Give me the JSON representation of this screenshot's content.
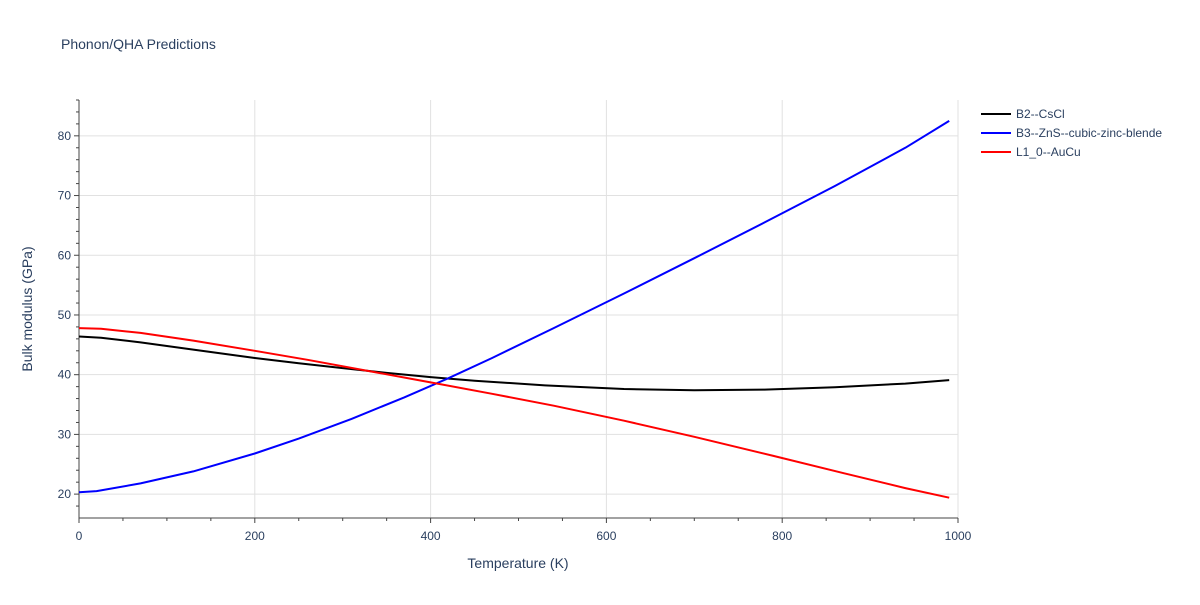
{
  "chart_data": {
    "type": "line",
    "title": "Phonon/QHA Predictions",
    "xlabel": "Temperature (K)",
    "ylabel": "Bulk modulus (GPa)",
    "xlim": [
      0,
      1000
    ],
    "ylim": [
      16,
      86
    ],
    "xticks": [
      0,
      200,
      400,
      600,
      800,
      1000
    ],
    "yticks": [
      20,
      30,
      40,
      50,
      60,
      70,
      80
    ],
    "grid": true,
    "legend_position": "top-right",
    "series": [
      {
        "name": "B2--CsCl",
        "color": "#000000",
        "x": [
          0,
          25,
          70,
          130,
          200,
          250,
          300,
          350,
          400,
          450,
          530,
          620,
          700,
          780,
          860,
          940,
          990
        ],
        "y": [
          46.4,
          46.2,
          45.4,
          44.2,
          42.8,
          41.9,
          41.1,
          40.3,
          39.6,
          39.0,
          38.2,
          37.6,
          37.4,
          37.5,
          37.9,
          38.5,
          39.1
        ]
      },
      {
        "name": "B3--ZnS--cubic-zinc-blende",
        "color": "#0000ff",
        "x": [
          0,
          20,
          70,
          130,
          200,
          250,
          310,
          370,
          420,
          470,
          540,
          620,
          700,
          780,
          860,
          940,
          990
        ],
        "y": [
          20.3,
          20.5,
          21.8,
          23.8,
          26.8,
          29.3,
          32.6,
          36.2,
          39.4,
          42.8,
          47.8,
          53.6,
          59.5,
          65.5,
          71.6,
          78.0,
          82.5
        ]
      },
      {
        "name": "L1_0--AuCu",
        "color": "#ff0000",
        "x": [
          0,
          25,
          70,
          130,
          200,
          260,
          330,
          400,
          470,
          540,
          620,
          700,
          790,
          870,
          940,
          990
        ],
        "y": [
          47.8,
          47.7,
          47.0,
          45.7,
          44.0,
          42.5,
          40.6,
          38.7,
          36.8,
          34.8,
          32.3,
          29.6,
          26.4,
          23.5,
          21.0,
          19.4
        ]
      }
    ]
  }
}
